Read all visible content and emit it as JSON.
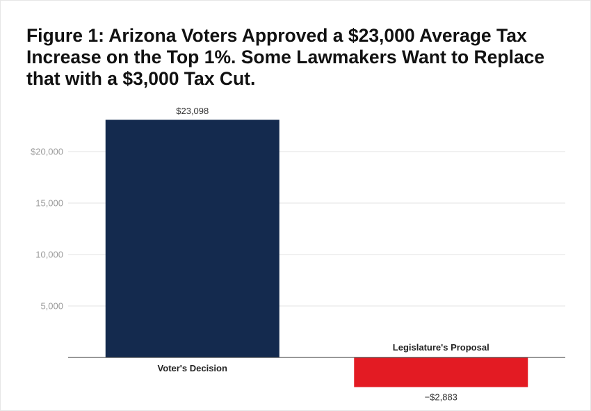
{
  "chart_data": {
    "type": "bar",
    "title": "Figure 1: Arizona Voters Approved a $23,000 Average Tax Increase on the Top 1%. Some Lawmakers Want to Replace that with a $3,000 Tax Cut.",
    "xlabel": "",
    "ylabel": "",
    "categories": [
      "Voter's Decision",
      "Legislature's Proposal"
    ],
    "values": [
      23098,
      -2883
    ],
    "data_labels": [
      "$23,098",
      "−$2,883"
    ],
    "colors": [
      "#142a4e",
      "#e31b23"
    ],
    "ylim": [
      -3000,
      23500
    ],
    "yticks": [
      5000,
      10000,
      15000,
      20000
    ],
    "ytick_labels": [
      "5,000",
      "10,000",
      "15,000",
      "$20,000"
    ],
    "grid": true,
    "legend": "none"
  }
}
